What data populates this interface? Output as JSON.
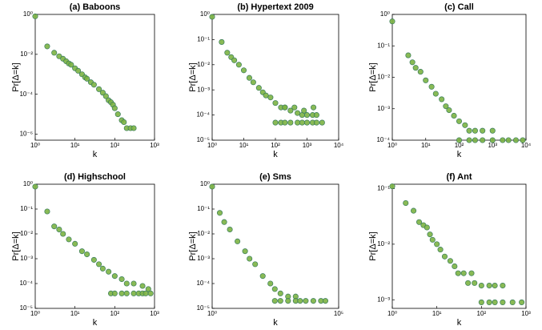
{
  "chart_data": [
    {
      "type": "scatter",
      "title": "(a)  Baboons",
      "xlabel": "k",
      "ylabel": "Pr[Δ=k]",
      "log_x": true,
      "log_y": true,
      "color": "#7cb342",
      "edgecolor": "#3a7d5c",
      "x": [
        1,
        2,
        3,
        4,
        5,
        6,
        7,
        8,
        10,
        12,
        15,
        18,
        20,
        25,
        30,
        40,
        50,
        60,
        70,
        80,
        90,
        100,
        120,
        150,
        170,
        200,
        250,
        300
      ],
      "values": [
        0.8,
        0.025,
        0.012,
        0.008,
        0.006,
        0.0045,
        0.0035,
        0.003,
        0.002,
        0.0015,
        0.001,
        0.0007,
        0.0006,
        0.0004,
        0.0003,
        0.00018,
        0.00012,
        8e-05,
        5e-05,
        4e-05,
        3e-05,
        2e-05,
        1e-05,
        5e-06,
        4e-06,
        2e-06,
        2e-06,
        2e-06
      ],
      "xlim": [
        1,
        1000
      ],
      "ylim": [
        5e-07,
        1
      ],
      "xticks": [
        {
          "value": 1,
          "label": "10⁰"
        },
        {
          "value": 10,
          "label": "10¹"
        },
        {
          "value": 100,
          "label": "10²"
        },
        {
          "value": 1000,
          "label": "10³"
        }
      ],
      "yticks": [
        {
          "value": 1,
          "label": "10⁰"
        },
        {
          "value": 0.01,
          "label": "10⁻²"
        },
        {
          "value": 0.0001,
          "label": "10⁻⁴"
        },
        {
          "value": 1e-06,
          "label": "10⁻⁶"
        }
      ]
    },
    {
      "type": "scatter",
      "title": "(b)  Hypertext 2009",
      "xlabel": "k",
      "ylabel": "Pr[Δ=k]",
      "log_x": true,
      "log_y": true,
      "color": "#7cb342",
      "edgecolor": "#3a7d5c",
      "x": [
        1,
        2,
        3,
        4,
        5,
        7,
        10,
        15,
        20,
        30,
        40,
        50,
        70,
        100,
        150,
        200,
        300,
        500,
        700,
        1000,
        1500,
        2000,
        100,
        150,
        200,
        300,
        500,
        700,
        1000,
        1500,
        2000,
        3000,
        200,
        400,
        800,
        1600
      ],
      "values": [
        0.8,
        0.08,
        0.03,
        0.02,
        0.015,
        0.01,
        0.006,
        0.003,
        0.002,
        0.0012,
        0.0008,
        0.0006,
        0.0005,
        0.0003,
        0.0002,
        0.0002,
        0.00015,
        0.00012,
        0.0001,
        0.0001,
        0.0001,
        0.0001,
        5e-05,
        5e-05,
        5e-05,
        5e-05,
        5e-05,
        5e-05,
        5e-05,
        5e-05,
        5e-05,
        5e-05,
        0.0002,
        0.0002,
        0.00015,
        0.0002
      ],
      "xlim": [
        1,
        10000
      ],
      "ylim": [
        1e-05,
        1
      ],
      "xticks": [
        {
          "value": 1,
          "label": "10⁰"
        },
        {
          "value": 10,
          "label": "10¹"
        },
        {
          "value": 100,
          "label": "10²"
        },
        {
          "value": 1000,
          "label": "10³"
        },
        {
          "value": 10000,
          "label": "10⁴"
        }
      ],
      "yticks": [
        {
          "value": 1,
          "label": "10⁰"
        },
        {
          "value": 0.1,
          "label": "10⁻¹"
        },
        {
          "value": 0.01,
          "label": "10⁻²"
        },
        {
          "value": 0.001,
          "label": "10⁻³"
        },
        {
          "value": 0.0001,
          "label": "10⁻⁴"
        },
        {
          "value": 1e-05,
          "label": "10⁻⁵"
        }
      ]
    },
    {
      "type": "scatter",
      "title": "(c)  Call",
      "xlabel": "k",
      "ylabel": "Pr[Δ=k]",
      "log_x": true,
      "log_y": true,
      "color": "#7cb342",
      "edgecolor": "#3a7d5c",
      "x": [
        1,
        3,
        4,
        5,
        7,
        10,
        15,
        20,
        30,
        40,
        50,
        70,
        100,
        150,
        200,
        300,
        500,
        1000,
        100,
        200,
        300,
        500,
        1000,
        2000,
        3000,
        5000,
        8000
      ],
      "values": [
        0.6,
        0.05,
        0.03,
        0.02,
        0.015,
        0.008,
        0.005,
        0.003,
        0.002,
        0.0012,
        0.0009,
        0.0006,
        0.0004,
        0.0003,
        0.0002,
        0.0002,
        0.0002,
        0.0002,
        0.0001,
        0.0001,
        0.0001,
        0.0001,
        0.0001,
        0.0001,
        0.0001,
        0.0001,
        0.0001
      ],
      "xlim": [
        1,
        10000
      ],
      "ylim": [
        0.0001,
        1
      ],
      "xticks": [
        {
          "value": 1,
          "label": "10⁰"
        },
        {
          "value": 10,
          "label": "10¹"
        },
        {
          "value": 100,
          "label": "10²"
        },
        {
          "value": 1000,
          "label": "10³"
        },
        {
          "value": 10000,
          "label": "10⁴"
        }
      ],
      "yticks": [
        {
          "value": 1,
          "label": "10⁰"
        },
        {
          "value": 0.1,
          "label": "10⁻¹"
        },
        {
          "value": 0.01,
          "label": "10⁻²"
        },
        {
          "value": 0.001,
          "label": "10⁻³"
        },
        {
          "value": 0.0001,
          "label": "10⁻⁴"
        }
      ]
    },
    {
      "type": "scatter",
      "title": "(d)  Highschool",
      "xlabel": "k",
      "ylabel": "Pr[Δ=k]",
      "log_x": true,
      "log_y": true,
      "color": "#7cb342",
      "edgecolor": "#3a7d5c",
      "x": [
        1,
        2,
        3,
        4,
        5,
        7,
        10,
        15,
        20,
        30,
        40,
        50,
        70,
        100,
        150,
        200,
        300,
        500,
        700,
        80,
        100,
        150,
        200,
        300,
        400,
        500,
        600,
        800
      ],
      "values": [
        0.8,
        0.08,
        0.02,
        0.015,
        0.01,
        0.006,
        0.004,
        0.002,
        0.0015,
        0.0009,
        0.0006,
        0.0004,
        0.0003,
        0.0002,
        0.00015,
        0.0001,
        0.0001,
        8e-05,
        6e-05,
        4e-05,
        4e-05,
        4e-05,
        4e-05,
        4e-05,
        4e-05,
        4e-05,
        4e-05,
        4e-05
      ],
      "xlim": [
        1,
        1000
      ],
      "ylim": [
        1e-05,
        1
      ],
      "xticks": [
        {
          "value": 1,
          "label": "10⁰"
        },
        {
          "value": 10,
          "label": "10¹"
        },
        {
          "value": 100,
          "label": "10²"
        },
        {
          "value": 1000,
          "label": "10³"
        }
      ],
      "yticks": [
        {
          "value": 1,
          "label": "10⁰"
        },
        {
          "value": 0.1,
          "label": "10⁻¹"
        },
        {
          "value": 0.01,
          "label": "10⁻²"
        },
        {
          "value": 0.001,
          "label": "10⁻³"
        },
        {
          "value": 0.0001,
          "label": "10⁻⁴"
        },
        {
          "value": 1e-05,
          "label": "10⁻⁵"
        }
      ]
    },
    {
      "type": "scatter",
      "title": "(e)  Sms",
      "xlabel": "k",
      "ylabel": "Pr[Δ=k]",
      "log_x": true,
      "log_y": true,
      "color": "#7cb342",
      "edgecolor": "#3a7d5c",
      "x": [
        1,
        2,
        3,
        5,
        10,
        20,
        30,
        50,
        100,
        200,
        300,
        500,
        1000,
        2000,
        300,
        500,
        1000,
        2000,
        3000,
        5000,
        10000,
        20000,
        30000
      ],
      "values": [
        0.8,
        0.07,
        0.03,
        0.015,
        0.005,
        0.002,
        0.001,
        0.0006,
        0.0002,
        0.0001,
        6e-05,
        4e-05,
        3e-05,
        3e-05,
        2e-05,
        2e-05,
        2e-05,
        2e-05,
        2e-05,
        2e-05,
        2e-05,
        2e-05,
        2e-05
      ],
      "xlim": [
        1,
        100000
      ],
      "ylim": [
        1e-05,
        1
      ],
      "xticks": [
        {
          "value": 1,
          "label": "10⁰"
        },
        {
          "value": 100000,
          "label": "10⁵"
        }
      ],
      "yticks": [
        {
          "value": 1,
          "label": "10⁰"
        },
        {
          "value": 0.1,
          "label": "10⁻¹"
        },
        {
          "value": 0.01,
          "label": "10⁻²"
        },
        {
          "value": 0.001,
          "label": "10⁻³"
        },
        {
          "value": 0.0001,
          "label": "10⁻⁴"
        },
        {
          "value": 1e-05,
          "label": "10⁻⁵"
        }
      ]
    },
    {
      "type": "scatter",
      "title": "(f)  Ant",
      "xlabel": "k",
      "ylabel": "Pr[Δ=k]",
      "log_x": true,
      "log_y": true,
      "color": "#7cb342",
      "edgecolor": "#3a7d5c",
      "x": [
        1,
        2,
        3,
        4,
        5,
        6,
        7,
        8,
        10,
        12,
        15,
        20,
        25,
        30,
        40,
        50,
        60,
        70,
        100,
        150,
        200,
        300,
        100,
        150,
        200,
        300,
        500,
        800
      ],
      "values": [
        0.11,
        0.055,
        0.04,
        0.025,
        0.022,
        0.02,
        0.015,
        0.012,
        0.01,
        0.008,
        0.006,
        0.005,
        0.004,
        0.003,
        0.003,
        0.002,
        0.003,
        0.002,
        0.0018,
        0.0018,
        0.0018,
        0.0018,
        0.0009,
        0.0009,
        0.0009,
        0.0009,
        0.0009,
        0.0009
      ],
      "xlim": [
        1,
        1000
      ],
      "ylim": [
        0.0007,
        0.12
      ],
      "xticks": [
        {
          "value": 1,
          "label": "10⁰"
        },
        {
          "value": 10,
          "label": "10¹"
        },
        {
          "value": 100,
          "label": "10²"
        },
        {
          "value": 1000,
          "label": "10³"
        }
      ],
      "yticks": [
        {
          "value": 0.1,
          "label": "10⁻¹"
        },
        {
          "value": 0.01,
          "label": "10⁻²"
        },
        {
          "value": 0.001,
          "label": "10⁻³"
        }
      ]
    }
  ]
}
